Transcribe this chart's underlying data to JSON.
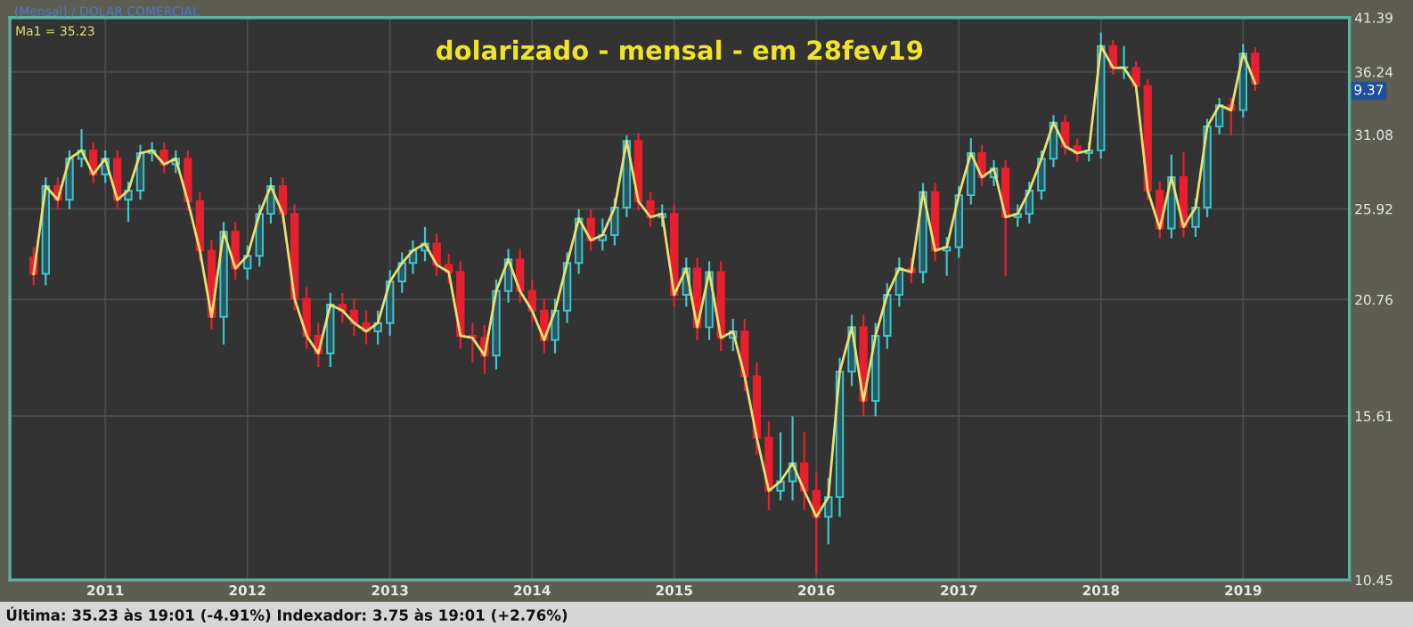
{
  "chart_data": {
    "type": "candlestick",
    "title": "dolarizado - mensal - em 28fev19",
    "x": [
      "2010-07",
      "2010-08",
      "2010-09",
      "2010-10",
      "2010-11",
      "2010-12",
      "2011-01",
      "2011-02",
      "2011-03",
      "2011-04",
      "2011-05",
      "2011-06",
      "2011-07",
      "2011-08",
      "2011-09",
      "2011-10",
      "2011-11",
      "2011-12",
      "2012-01",
      "2012-02",
      "2012-03",
      "2012-04",
      "2012-05",
      "2012-06",
      "2012-07",
      "2012-08",
      "2012-09",
      "2012-10",
      "2012-11",
      "2012-12",
      "2013-01",
      "2013-02",
      "2013-03",
      "2013-04",
      "2013-05",
      "2013-06",
      "2013-07",
      "2013-08",
      "2013-09",
      "2013-10",
      "2013-11",
      "2013-12",
      "2014-01",
      "2014-02",
      "2014-03",
      "2014-04",
      "2014-05",
      "2014-06",
      "2014-07",
      "2014-08",
      "2014-09",
      "2014-10",
      "2014-11",
      "2014-12",
      "2015-01",
      "2015-02",
      "2015-03",
      "2015-04",
      "2015-05",
      "2015-06",
      "2015-07",
      "2015-08",
      "2015-09",
      "2015-10",
      "2015-11",
      "2015-12",
      "2016-01",
      "2016-02",
      "2016-03",
      "2016-04",
      "2016-05",
      "2016-06",
      "2016-07",
      "2016-08",
      "2016-09",
      "2016-10",
      "2016-11",
      "2016-12",
      "2017-01",
      "2017-02",
      "2017-03",
      "2017-04",
      "2017-05",
      "2017-06",
      "2017-07",
      "2017-08",
      "2017-09",
      "2017-10",
      "2017-11",
      "2017-12",
      "2018-01",
      "2018-02",
      "2018-03",
      "2018-04",
      "2018-05",
      "2018-06",
      "2018-07",
      "2018-08",
      "2018-09",
      "2018-10",
      "2018-11",
      "2018-12",
      "2019-01",
      "2019-02"
    ],
    "ohlc": [
      [
        23.0,
        23.6,
        21.5,
        22.1
      ],
      [
        22.1,
        28.0,
        21.5,
        27.4
      ],
      [
        27.4,
        28.0,
        25.9,
        26.5
      ],
      [
        26.5,
        29.9,
        25.9,
        29.3
      ],
      [
        29.3,
        31.5,
        28.7,
        29.9
      ],
      [
        29.9,
        30.5,
        27.6,
        28.2
      ],
      [
        28.2,
        29.9,
        27.6,
        29.3
      ],
      [
        29.3,
        29.9,
        25.9,
        26.5
      ],
      [
        26.5,
        27.7,
        25.1,
        27.1
      ],
      [
        27.1,
        30.3,
        26.5,
        29.7
      ],
      [
        29.7,
        30.5,
        29.1,
        29.9
      ],
      [
        29.9,
        30.5,
        28.3,
        28.9
      ],
      [
        28.9,
        29.9,
        28.3,
        29.3
      ],
      [
        29.3,
        29.9,
        25.8,
        26.4
      ],
      [
        26.4,
        27.0,
        22.8,
        23.4
      ],
      [
        23.4,
        24.0,
        19.3,
        19.9
      ],
      [
        19.9,
        25.1,
        18.6,
        24.5
      ],
      [
        24.5,
        25.1,
        21.8,
        22.4
      ],
      [
        22.4,
        23.7,
        21.8,
        23.1
      ],
      [
        23.1,
        26.2,
        22.5,
        25.6
      ],
      [
        25.6,
        28.0,
        25.0,
        27.4
      ],
      [
        27.4,
        28.0,
        25.0,
        25.6
      ],
      [
        25.6,
        26.2,
        20.2,
        20.8
      ],
      [
        20.8,
        21.4,
        18.4,
        19.0
      ],
      [
        19.0,
        19.6,
        17.6,
        18.2
      ],
      [
        18.2,
        21.1,
        17.6,
        20.5
      ],
      [
        20.5,
        21.1,
        19.6,
        20.2
      ],
      [
        20.2,
        20.8,
        19.0,
        19.6
      ],
      [
        19.6,
        20.2,
        18.6,
        19.2
      ],
      [
        19.2,
        20.2,
        18.6,
        19.6
      ],
      [
        19.6,
        22.3,
        19.0,
        21.7
      ],
      [
        21.7,
        23.3,
        21.1,
        22.7
      ],
      [
        22.7,
        24.0,
        22.1,
        23.4
      ],
      [
        23.4,
        24.8,
        22.8,
        23.8
      ],
      [
        23.8,
        24.4,
        22.0,
        22.6
      ],
      [
        22.6,
        23.2,
        21.6,
        22.2
      ],
      [
        22.2,
        22.8,
        18.4,
        19.0
      ],
      [
        19.0,
        19.6,
        17.8,
        18.9
      ],
      [
        18.9,
        19.5,
        17.3,
        18.1
      ],
      [
        18.1,
        21.8,
        17.5,
        21.2
      ],
      [
        21.2,
        23.5,
        20.6,
        22.9
      ],
      [
        22.9,
        23.5,
        20.6,
        21.2
      ],
      [
        21.2,
        21.8,
        19.6,
        20.2
      ],
      [
        20.2,
        20.8,
        18.2,
        18.8
      ],
      [
        18.8,
        20.8,
        18.2,
        20.2
      ],
      [
        20.2,
        23.3,
        19.6,
        22.7
      ],
      [
        22.7,
        25.9,
        22.1,
        25.3
      ],
      [
        25.3,
        25.9,
        23.4,
        24.0
      ],
      [
        24.0,
        25.3,
        23.4,
        24.3
      ],
      [
        24.3,
        26.6,
        23.7,
        26.0
      ],
      [
        26.0,
        31.0,
        25.4,
        30.6
      ],
      [
        30.6,
        31.2,
        25.8,
        26.4
      ],
      [
        26.4,
        27.0,
        24.8,
        25.4
      ],
      [
        25.4,
        26.2,
        24.8,
        25.6
      ],
      [
        25.6,
        26.2,
        20.4,
        21.0
      ],
      [
        21.0,
        23.0,
        20.4,
        22.4
      ],
      [
        22.4,
        23.0,
        18.8,
        19.4
      ],
      [
        19.4,
        22.8,
        18.8,
        22.2
      ],
      [
        22.2,
        22.8,
        18.3,
        18.9
      ],
      [
        18.9,
        19.8,
        18.3,
        19.2
      ],
      [
        19.2,
        19.8,
        16.6,
        17.2
      ],
      [
        17.2,
        17.8,
        14.2,
        14.8
      ],
      [
        14.8,
        15.4,
        12.4,
        13.0
      ],
      [
        13.0,
        15.0,
        12.7,
        13.3
      ],
      [
        13.3,
        15.6,
        12.7,
        13.9
      ],
      [
        13.9,
        15.0,
        12.4,
        13.0
      ],
      [
        13.0,
        13.6,
        10.6,
        12.2
      ],
      [
        12.2,
        13.4,
        11.4,
        12.8
      ],
      [
        12.8,
        18.0,
        12.2,
        17.4
      ],
      [
        17.4,
        20.0,
        16.8,
        19.4
      ],
      [
        19.4,
        20.0,
        15.6,
        16.2
      ],
      [
        16.2,
        19.6,
        15.6,
        19.0
      ],
      [
        19.0,
        21.6,
        18.4,
        21.0
      ],
      [
        21.0,
        23.0,
        20.4,
        22.4
      ],
      [
        22.4,
        23.0,
        21.6,
        22.2
      ],
      [
        22.2,
        27.6,
        21.6,
        27.0
      ],
      [
        27.0,
        27.6,
        22.8,
        23.4
      ],
      [
        23.4,
        24.2,
        22.0,
        23.6
      ],
      [
        23.6,
        27.4,
        23.0,
        26.8
      ],
      [
        26.8,
        30.8,
        26.2,
        29.7
      ],
      [
        29.7,
        30.3,
        27.4,
        28.0
      ],
      [
        28.0,
        29.2,
        27.4,
        28.6
      ],
      [
        28.6,
        29.2,
        22.0,
        25.4
      ],
      [
        25.4,
        26.2,
        24.8,
        25.6
      ],
      [
        25.6,
        27.7,
        25.0,
        27.1
      ],
      [
        27.1,
        29.9,
        26.5,
        29.3
      ],
      [
        29.3,
        32.6,
        28.7,
        32.0
      ],
      [
        32.0,
        32.6,
        29.6,
        30.2
      ],
      [
        30.2,
        30.8,
        29.1,
        29.7
      ],
      [
        29.7,
        30.5,
        29.1,
        29.9
      ],
      [
        29.9,
        39.9,
        29.3,
        38.6
      ],
      [
        38.6,
        39.2,
        36.0,
        36.6
      ],
      [
        36.6,
        38.6,
        35.6,
        36.6
      ],
      [
        36.6,
        37.2,
        34.4,
        35.0
      ],
      [
        35.0,
        35.6,
        26.5,
        27.1
      ],
      [
        27.1,
        27.7,
        24.1,
        24.7
      ],
      [
        24.7,
        29.6,
        24.1,
        28.0
      ],
      [
        28.0,
        29.8,
        24.2,
        24.8
      ],
      [
        24.8,
        26.6,
        24.2,
        26.0
      ],
      [
        26.0,
        32.3,
        25.4,
        31.7
      ],
      [
        31.7,
        34.0,
        31.1,
        33.4
      ],
      [
        33.4,
        34.0,
        31.0,
        33.0
      ],
      [
        33.0,
        38.8,
        32.4,
        37.9
      ],
      [
        37.9,
        38.5,
        34.6,
        35.23
      ]
    ],
    "series": [
      {
        "type": "line",
        "name": "Ma1 = 35.23",
        "color": "#e8e070",
        "values": [
          22.1,
          27.4,
          26.5,
          29.3,
          29.9,
          28.2,
          29.3,
          26.5,
          27.1,
          29.7,
          29.9,
          28.9,
          29.3,
          26.4,
          23.4,
          19.9,
          24.5,
          22.4,
          23.1,
          25.6,
          27.4,
          25.6,
          20.8,
          19.0,
          18.2,
          20.5,
          20.2,
          19.6,
          19.2,
          19.6,
          21.7,
          22.7,
          23.4,
          23.8,
          22.6,
          22.2,
          19.0,
          18.9,
          18.1,
          21.2,
          22.9,
          21.2,
          20.2,
          18.8,
          20.2,
          22.7,
          25.3,
          24.0,
          24.3,
          26.0,
          30.6,
          26.4,
          25.4,
          25.6,
          21.0,
          22.4,
          19.4,
          22.2,
          18.9,
          19.2,
          17.2,
          14.8,
          13.0,
          13.3,
          13.9,
          13.0,
          12.2,
          12.8,
          17.4,
          19.4,
          16.2,
          19.0,
          21.0,
          22.4,
          22.2,
          27.0,
          23.4,
          23.6,
          26.8,
          29.7,
          28.0,
          28.6,
          25.4,
          25.6,
          27.1,
          29.3,
          32.0,
          30.2,
          29.7,
          29.9,
          38.6,
          36.6,
          36.6,
          35.0,
          27.1,
          24.7,
          28.0,
          24.8,
          26.0,
          31.7,
          33.4,
          33.0,
          37.9,
          35.23
        ]
      }
    ],
    "log": "y",
    "xlim": [
      "2010-05",
      "2019-10"
    ],
    "xticks": [
      {
        "value": "2011-01",
        "label": "2011"
      },
      {
        "value": "2012-01",
        "label": "2012"
      },
      {
        "value": "2013-01",
        "label": "2013"
      },
      {
        "value": "2014-01",
        "label": "2014"
      },
      {
        "value": "2015-01",
        "label": "2015"
      },
      {
        "value": "2016-01",
        "label": "2016"
      },
      {
        "value": "2017-01",
        "label": "2017"
      },
      {
        "value": "2018-01",
        "label": "2018"
      },
      {
        "value": "2019-01",
        "label": "2019"
      }
    ],
    "ylim": [
      10.45,
      41.39
    ],
    "yticks": [
      10.45,
      15.61,
      20.76,
      25.92,
      31.08,
      36.24,
      41.39
    ],
    "grid": true,
    "annotations": [
      "(Mensal) / DOLAR COMERCIAL",
      "9.37",
      "Última: 35.23 às 19:01 (-4.91%) Indexador: 3.75 às 19:01 (+2.76%)"
    ]
  }
}
